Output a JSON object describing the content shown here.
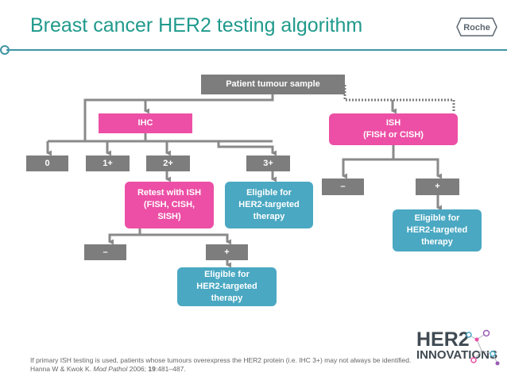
{
  "title": "Breast cancer HER2 testing algorithm",
  "logo_text": "Roche",
  "nodes": {
    "sample": "Patient tumour sample",
    "ihc": "IHC",
    "ish": "ISH\n(FISH or CISH)",
    "score0": "0",
    "score1": "1+",
    "score2": "2+",
    "score3": "3+",
    "retest": "Retest with ISH\n(FISH, CISH,\nSISH)",
    "eligible_3plus": "Eligible for\nHER2-targeted\ntherapy",
    "retest_neg": "–",
    "retest_pos": "+",
    "eligible_retest": "Eligible for\nHER2-targeted\ntherapy",
    "ish_neg": "–",
    "ish_pos": "+",
    "eligible_ish": "Eligible for\nHER2-targeted\ntherapy"
  },
  "footnote": {
    "line1": "If primary ISH testing is used, patients whose tumours overexpress the HER2 protein (i.e. IHC 3+) may not always be identified.",
    "line2_authors": "Hanna W & Kwok K. ",
    "line2_journal": "Mod Pathol",
    "line2_year": " 2006; ",
    "line2_volume": "19",
    "line2_pages": ":481–487."
  },
  "brand": {
    "line1": "HER2",
    "line2": "INNOVATIONS"
  },
  "colors": {
    "title": "#1f9a8c",
    "gray_box": "#7d7d7d",
    "pink": "#ec4fa5",
    "teal": "#4aa8c2",
    "connector": "#888888"
  }
}
